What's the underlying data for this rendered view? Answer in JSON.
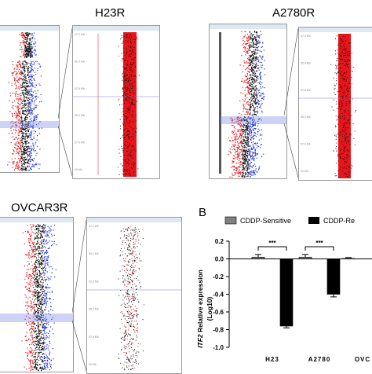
{
  "panels": {
    "h23r": {
      "title": "H23R"
    },
    "a2780r": {
      "title": "A2780R"
    },
    "ovcar3r": {
      "title": "OVCAR3R"
    }
  },
  "zoom_tick_labels": [
    "47.2 Mb",
    "50.4 Mb",
    "52.8 Mb",
    "55.2 Mb",
    "57.6 Mb",
    "60 Mb"
  ],
  "panel_b_label": "B",
  "chart_data": {
    "type": "bar",
    "categories": [
      "H23",
      "A2780",
      "OVC"
    ],
    "series": [
      {
        "name": "CDDP-Sensitive",
        "color": "#808080",
        "values": [
          0.02,
          0.02,
          0.005
        ],
        "errors": [
          0.03,
          0.03,
          0.01
        ]
      },
      {
        "name": "CDDP-Re",
        "color": "#000000",
        "values": [
          -0.76,
          -0.4,
          null
        ],
        "errors": [
          0.02,
          0.03,
          null
        ]
      }
    ],
    "ylabel_italic": "ITF2",
    "ylabel_rest": " Relative expression",
    "ylabel_line2": "(Log10)",
    "ylim": [
      -1.0,
      0.2
    ],
    "yticks": [
      "0.2",
      "0.0",
      "-0.2",
      "-0.4",
      "-0.6",
      "-0.8",
      "-1.0"
    ],
    "significance": [
      "***",
      "***"
    ],
    "legend_position": "top"
  },
  "colors": {
    "loss": "#e8151b",
    "neutral": "#111111",
    "gain": "#1f2fd6",
    "highlight": "#e8151b"
  }
}
